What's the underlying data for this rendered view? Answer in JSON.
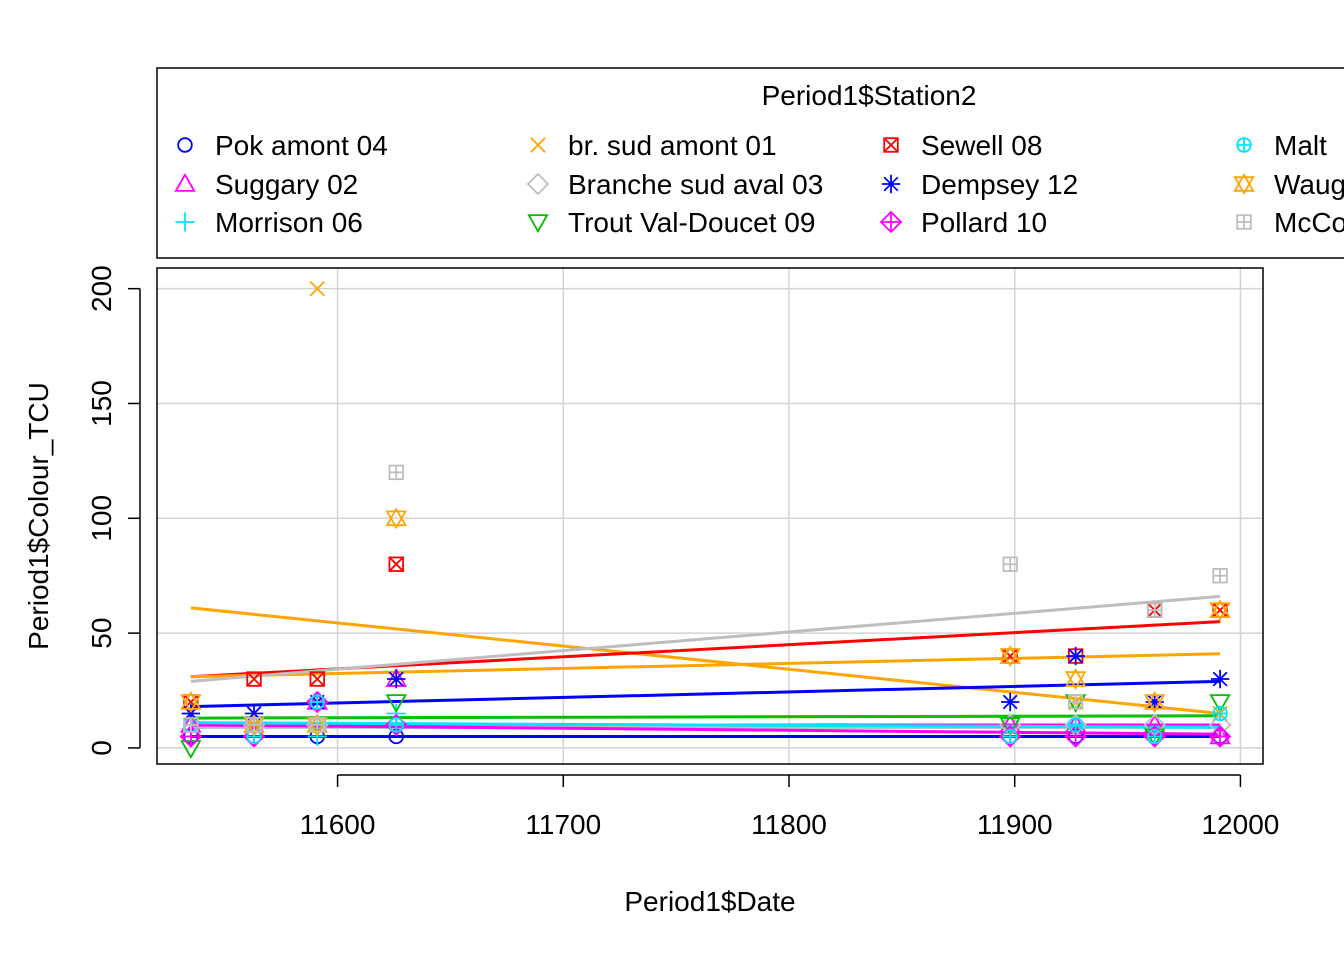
{
  "chart_data": {
    "type": "scatter",
    "title": "",
    "xlabel": "Period1$Date",
    "ylabel": "Period1$Colour_TCU",
    "xlim": [
      11520,
      12010
    ],
    "ylim": [
      -7,
      209
    ],
    "x_ticks": [
      "11600",
      "11700",
      "11800",
      "11900",
      "12000"
    ],
    "y_ticks": [
      "0",
      "50",
      "100",
      "150",
      "200"
    ],
    "grid": true,
    "legend": {
      "title": "Period1$Station2",
      "placement": "top",
      "columns": 4
    },
    "series": [
      {
        "name": "Pok amont 04",
        "color": "#0000ff",
        "marker": "circle",
        "points": [
          [
            11535,
            5
          ],
          [
            11563,
            5
          ],
          [
            11591,
            5
          ],
          [
            11626,
            5
          ],
          [
            11898,
            5
          ],
          [
            11927,
            5
          ],
          [
            11962,
            5
          ],
          [
            11991,
            5
          ]
        ],
        "trend": [
          [
            11535,
            5
          ],
          [
            11991,
            5
          ]
        ]
      },
      {
        "name": "Suggary 02",
        "color": "#ff00ff",
        "marker": "triangle-up",
        "points": [
          [
            11535,
            10
          ],
          [
            11563,
            10
          ],
          [
            11591,
            20
          ],
          [
            11626,
            30
          ],
          [
            11898,
            10
          ],
          [
            11927,
            10
          ],
          [
            11962,
            10
          ],
          [
            11991,
            5
          ]
        ],
        "trend": [
          [
            11535,
            10
          ],
          [
            11991,
            10
          ]
        ]
      },
      {
        "name": "Morrison 06",
        "color": "#00e5ff",
        "marker": "plus",
        "points": [
          [
            11535,
            5
          ],
          [
            11563,
            5
          ],
          [
            11591,
            5
          ],
          [
            11626,
            15
          ],
          [
            11898,
            5
          ],
          [
            11927,
            10
          ],
          [
            11962,
            5
          ],
          [
            11991,
            5
          ]
        ],
        "trend": [
          [
            11535,
            9
          ],
          [
            11991,
            9
          ]
        ]
      },
      {
        "name": "br. sud amont 01",
        "color": "#ffa500",
        "marker": "cross",
        "points": [
          [
            11535,
            20
          ],
          [
            11563,
            10
          ],
          [
            11591,
            200
          ],
          [
            11626,
            80
          ],
          [
            11898,
            40
          ],
          [
            11927,
            20
          ],
          [
            11962,
            20
          ],
          [
            11991,
            15
          ]
        ],
        "trend": [
          [
            11535,
            61
          ],
          [
            11991,
            15
          ]
        ]
      },
      {
        "name": "Branche sud aval 03",
        "color": "#bebebe",
        "marker": "diamond",
        "points": [
          [
            11535,
            5
          ],
          [
            11563,
            10
          ],
          [
            11591,
            10
          ],
          [
            11626,
            10
          ],
          [
            11898,
            10
          ],
          [
            11927,
            10
          ],
          [
            11962,
            10
          ],
          [
            11991,
            10
          ]
        ],
        "trend": [
          [
            11535,
            9
          ],
          [
            11991,
            9
          ]
        ]
      },
      {
        "name": "Trout Val-Doucet 09",
        "color": "#00c000",
        "marker": "triangle-down",
        "points": [
          [
            11535,
            0
          ],
          [
            11563,
            10
          ],
          [
            11591,
            10
          ],
          [
            11626,
            20
          ],
          [
            11898,
            10
          ],
          [
            11927,
            20
          ],
          [
            11962,
            5
          ],
          [
            11991,
            20
          ]
        ],
        "trend": [
          [
            11535,
            13
          ],
          [
            11991,
            14
          ]
        ]
      },
      {
        "name": "Sewell 08",
        "color": "#ff0000",
        "marker": "square-x",
        "points": [
          [
            11535,
            20
          ],
          [
            11563,
            30
          ],
          [
            11591,
            30
          ],
          [
            11626,
            80
          ],
          [
            11898,
            40
          ],
          [
            11927,
            40
          ],
          [
            11962,
            60
          ],
          [
            11991,
            60
          ]
        ],
        "trend": [
          [
            11535,
            31
          ],
          [
            11991,
            55
          ]
        ]
      },
      {
        "name": "Dempsey 12",
        "color": "#0000ff",
        "marker": "asterisk",
        "points": [
          [
            11535,
            15
          ],
          [
            11563,
            15
          ],
          [
            11591,
            20
          ],
          [
            11626,
            30
          ],
          [
            11898,
            20
          ],
          [
            11927,
            40
          ],
          [
            11962,
            20
          ],
          [
            11991,
            30
          ]
        ],
        "trend": [
          [
            11535,
            18
          ],
          [
            11991,
            29
          ]
        ]
      },
      {
        "name": "Pollard 10",
        "color": "#ff00ff",
        "marker": "diamond-plus",
        "points": [
          [
            11535,
            5
          ],
          [
            11563,
            5
          ],
          [
            11591,
            20
          ],
          [
            11626,
            10
          ],
          [
            11898,
            5
          ],
          [
            11927,
            5
          ],
          [
            11962,
            5
          ],
          [
            11991,
            5
          ]
        ],
        "trend": [
          [
            11535,
            10
          ],
          [
            11991,
            6
          ]
        ]
      },
      {
        "name": "Malt",
        "color": "#00e5ff",
        "marker": "circle-plus",
        "points": [
          [
            11535,
            10
          ],
          [
            11563,
            5
          ],
          [
            11591,
            20
          ],
          [
            11626,
            10
          ],
          [
            11898,
            5
          ],
          [
            11927,
            10
          ],
          [
            11962,
            5
          ],
          [
            11991,
            15
          ]
        ],
        "trend": [
          [
            11535,
            11
          ],
          [
            11991,
            9
          ]
        ]
      },
      {
        "name": "Waug",
        "color": "#ffa500",
        "marker": "star-of-david",
        "points": [
          [
            11535,
            20
          ],
          [
            11563,
            10
          ],
          [
            11591,
            10
          ],
          [
            11626,
            100
          ],
          [
            11898,
            40
          ],
          [
            11927,
            30
          ],
          [
            11962,
            20
          ],
          [
            11991,
            60
          ]
        ],
        "trend": [
          [
            11535,
            31
          ],
          [
            11991,
            41
          ]
        ]
      },
      {
        "name": "McCo",
        "color": "#bebebe",
        "marker": "square-plus",
        "points": [
          [
            11535,
            10
          ],
          [
            11563,
            10
          ],
          [
            11591,
            10
          ],
          [
            11626,
            120
          ],
          [
            11898,
            80
          ],
          [
            11927,
            20
          ],
          [
            11962,
            60
          ],
          [
            11991,
            75
          ]
        ],
        "trend": [
          [
            11535,
            29
          ],
          [
            11991,
            66
          ]
        ]
      }
    ]
  }
}
